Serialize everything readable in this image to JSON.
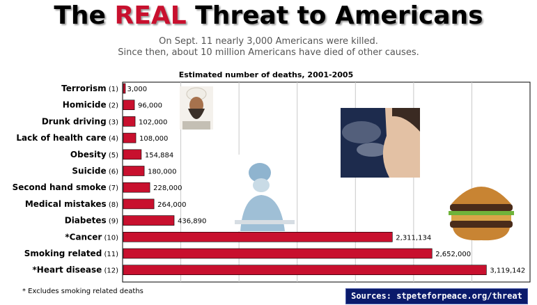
{
  "header": {
    "title_pre": "The ",
    "title_highlight": "REAL",
    "title_post": " Threat to Americans",
    "subtitle_line1": "On Sept. 11 nearly 3,000 Americans were killed.",
    "subtitle_line2": "Since then, about 10 million Americans have died of other causes."
  },
  "chart_data": {
    "type": "bar",
    "orientation": "horizontal",
    "title": "Estimated number of deaths, 2001-2005",
    "categories": [
      {
        "name": "Terrorism",
        "num": "(1)",
        "value": 3000,
        "label": "3,000"
      },
      {
        "name": "Homicide",
        "num": "(2)",
        "value": 96000,
        "label": "96,000"
      },
      {
        "name": "Drunk driving",
        "num": "(3)",
        "value": 102000,
        "label": "102,000"
      },
      {
        "name": "Lack of health care",
        "num": "(4)",
        "value": 108000,
        "label": "108,000"
      },
      {
        "name": "Obesity",
        "num": "(5)",
        "value": 154884,
        "label": "154,884"
      },
      {
        "name": "Suicide",
        "num": "(6)",
        "value": 180000,
        "label": "180,000"
      },
      {
        "name": "Second hand smoke",
        "num": "(7)",
        "value": 228000,
        "label": "228,000"
      },
      {
        "name": "Medical mistakes",
        "num": "(8)",
        "value": 264000,
        "label": "264,000"
      },
      {
        "name": "Diabetes",
        "num": "(9)",
        "value": 436890,
        "label": "436,890"
      },
      {
        "name": "*Cancer",
        "num": "(10)",
        "value": 2311134,
        "label": "2,311,134"
      },
      {
        "name": "Smoking related",
        "num": "(11)",
        "value": 2652000,
        "label": "2,652,000"
      },
      {
        "name": "*Heart disease",
        "num": "(12)",
        "value": 3119142,
        "label": "3,119,142"
      }
    ],
    "xlim": [
      0,
      3500000
    ],
    "grid": true,
    "bar_color": "#c8102e"
  },
  "footnote": "* Excludes smoking related deaths",
  "sources": "Sources: stpeteforpeace.org/threat",
  "colors": {
    "title_highlight": "#c8102e",
    "sources_bg": "#0a1a6b"
  }
}
